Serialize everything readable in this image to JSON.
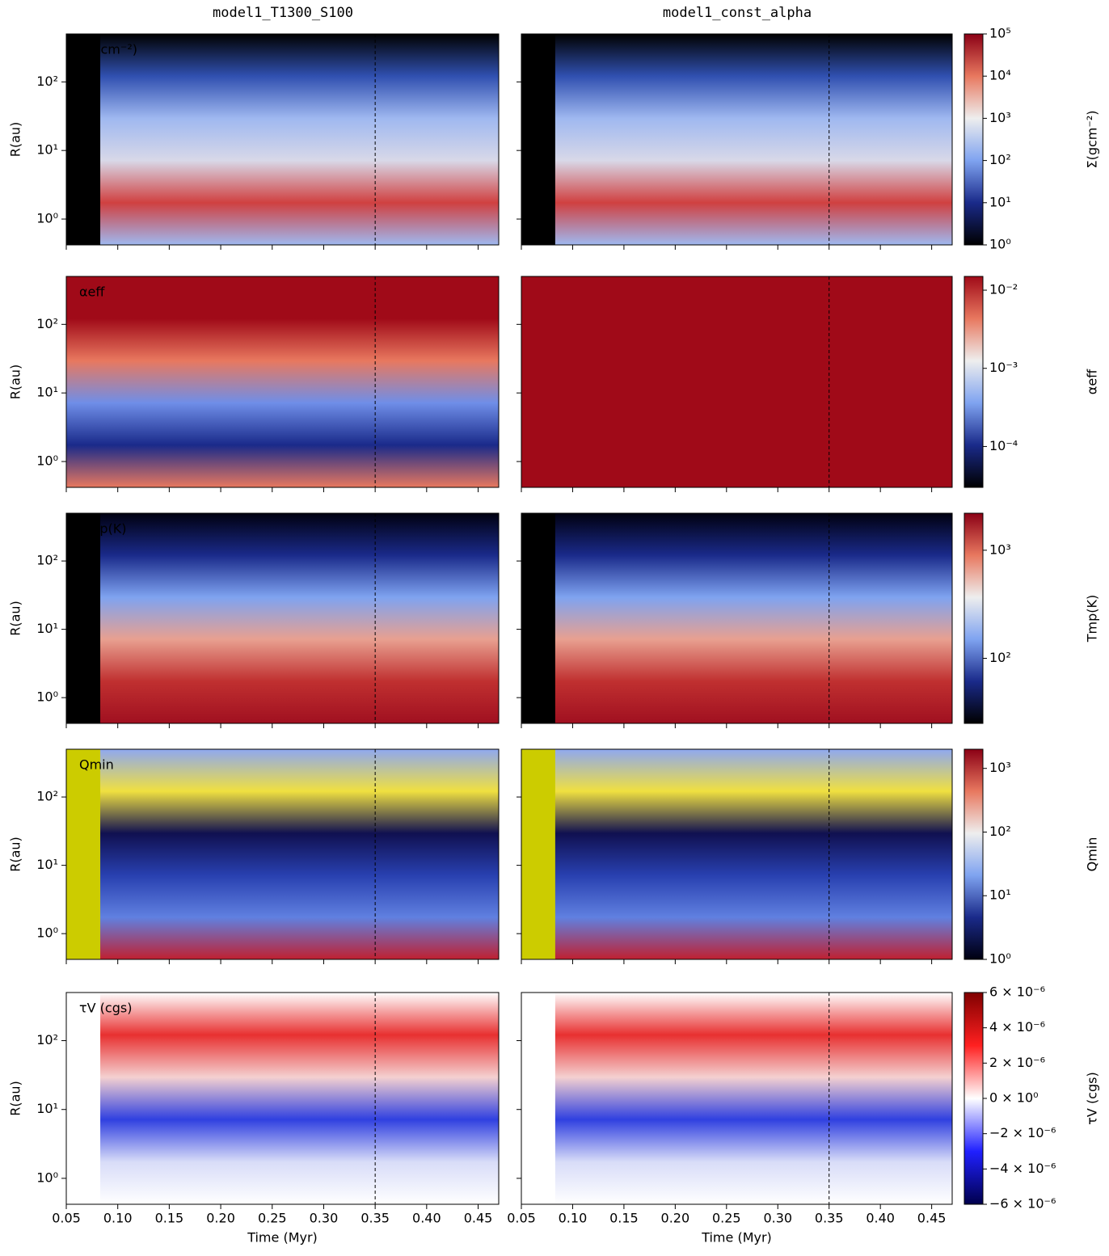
{
  "chart_data": {
    "type": "heatmap",
    "columns": [
      "model1_T1300_S100",
      "model1_const_alpha"
    ],
    "xlabel": "Time (Myr)",
    "ylabel": "R(au)",
    "xlim": [
      0.05,
      0.47
    ],
    "xticks": [
      {
        "value": 0.05,
        "label": "0.05"
      },
      {
        "value": 0.1,
        "label": "0.10"
      },
      {
        "value": 0.15,
        "label": "0.15"
      },
      {
        "value": 0.2,
        "label": "0.20"
      },
      {
        "value": 0.25,
        "label": "0.25"
      },
      {
        "value": 0.3,
        "label": "0.30"
      },
      {
        "value": 0.35,
        "label": "0.35"
      },
      {
        "value": 0.4,
        "label": "0.40"
      },
      {
        "value": 0.45,
        "label": "0.45"
      }
    ],
    "ylim": [
      0.42,
      500
    ],
    "yscale": "log",
    "yticks": [
      {
        "value": 1,
        "label": "10⁰"
      },
      {
        "value": 10,
        "label": "10¹"
      },
      {
        "value": 100,
        "label": "10²"
      }
    ],
    "vline": 0.35,
    "rows": [
      {
        "label": "Σ(gcm⁻²)",
        "colorbar_label": "Σ(gcm⁻²)",
        "scale": "log",
        "clim": [
          1,
          100000
        ],
        "cticks": [
          {
            "value": 1,
            "label": "10⁰"
          },
          {
            "value": 10,
            "label": "10¹"
          },
          {
            "value": 100,
            "label": "10²"
          },
          {
            "value": 1000,
            "label": "10³"
          },
          {
            "value": 10000,
            "label": "10⁴"
          },
          {
            "value": 100000,
            "label": "10⁵"
          }
        ],
        "colors": [
          "#000000",
          "#1a2a8a",
          "#7fa3f0",
          "#eeeeee",
          "#e8785f",
          "#8b0015"
        ]
      },
      {
        "label": "αeff",
        "colorbar_label": "αeff",
        "scale": "log",
        "clim": [
          3e-05,
          0.015
        ],
        "cticks": [
          {
            "value": 0.0001,
            "label": "10⁻⁴"
          },
          {
            "value": 0.001,
            "label": "10⁻³"
          },
          {
            "value": 0.01,
            "label": "10⁻²"
          }
        ],
        "colors": [
          "#000000",
          "#1a2a8a",
          "#7fa3f0",
          "#eeeeee",
          "#e8785f",
          "#a00a18"
        ]
      },
      {
        "label": "Tmp(K)",
        "colorbar_label": "Tmp(K)",
        "scale": "log",
        "clim": [
          25,
          2200
        ],
        "cticks": [
          {
            "value": 100,
            "label": "10²"
          },
          {
            "value": 1000,
            "label": "10³"
          }
        ],
        "colors": [
          "#000000",
          "#1a2a8a",
          "#7fa3f0",
          "#eeeeee",
          "#e8785f",
          "#8b0015"
        ]
      },
      {
        "label": "Qmin",
        "colorbar_label": "Qmin",
        "scale": "log",
        "clim": [
          1,
          2000
        ],
        "cticks": [
          {
            "value": 1,
            "label": "10⁰"
          },
          {
            "value": 10,
            "label": "10¹"
          },
          {
            "value": 100,
            "label": "10²"
          },
          {
            "value": 1000,
            "label": "10³"
          }
        ],
        "colors": [
          "#000010",
          "#1a2a8a",
          "#7fa3f0",
          "#eeeeee",
          "#e8785f",
          "#8b0015"
        ]
      },
      {
        "label": "τV (cgs)",
        "colorbar_label": "τV (cgs)",
        "scale": "linear",
        "clim": [
          -6e-06,
          6e-06
        ],
        "cticks": [
          {
            "value": -6e-06,
            "label": "−6 × 10⁻⁶"
          },
          {
            "value": -4e-06,
            "label": "−4 × 10⁻⁶"
          },
          {
            "value": -2e-06,
            "label": "−2 × 10⁻⁶"
          },
          {
            "value": 0,
            "label": "0 × 10⁰"
          },
          {
            "value": 2e-06,
            "label": "2 × 10⁻⁶"
          },
          {
            "value": 4e-06,
            "label": "4 × 10⁻⁶"
          },
          {
            "value": 6e-06,
            "label": "6 × 10⁻⁶"
          }
        ],
        "colors": [
          "#00004c",
          "#2020ff",
          "#ffffff",
          "#ff2020",
          "#800000"
        ]
      }
    ]
  }
}
